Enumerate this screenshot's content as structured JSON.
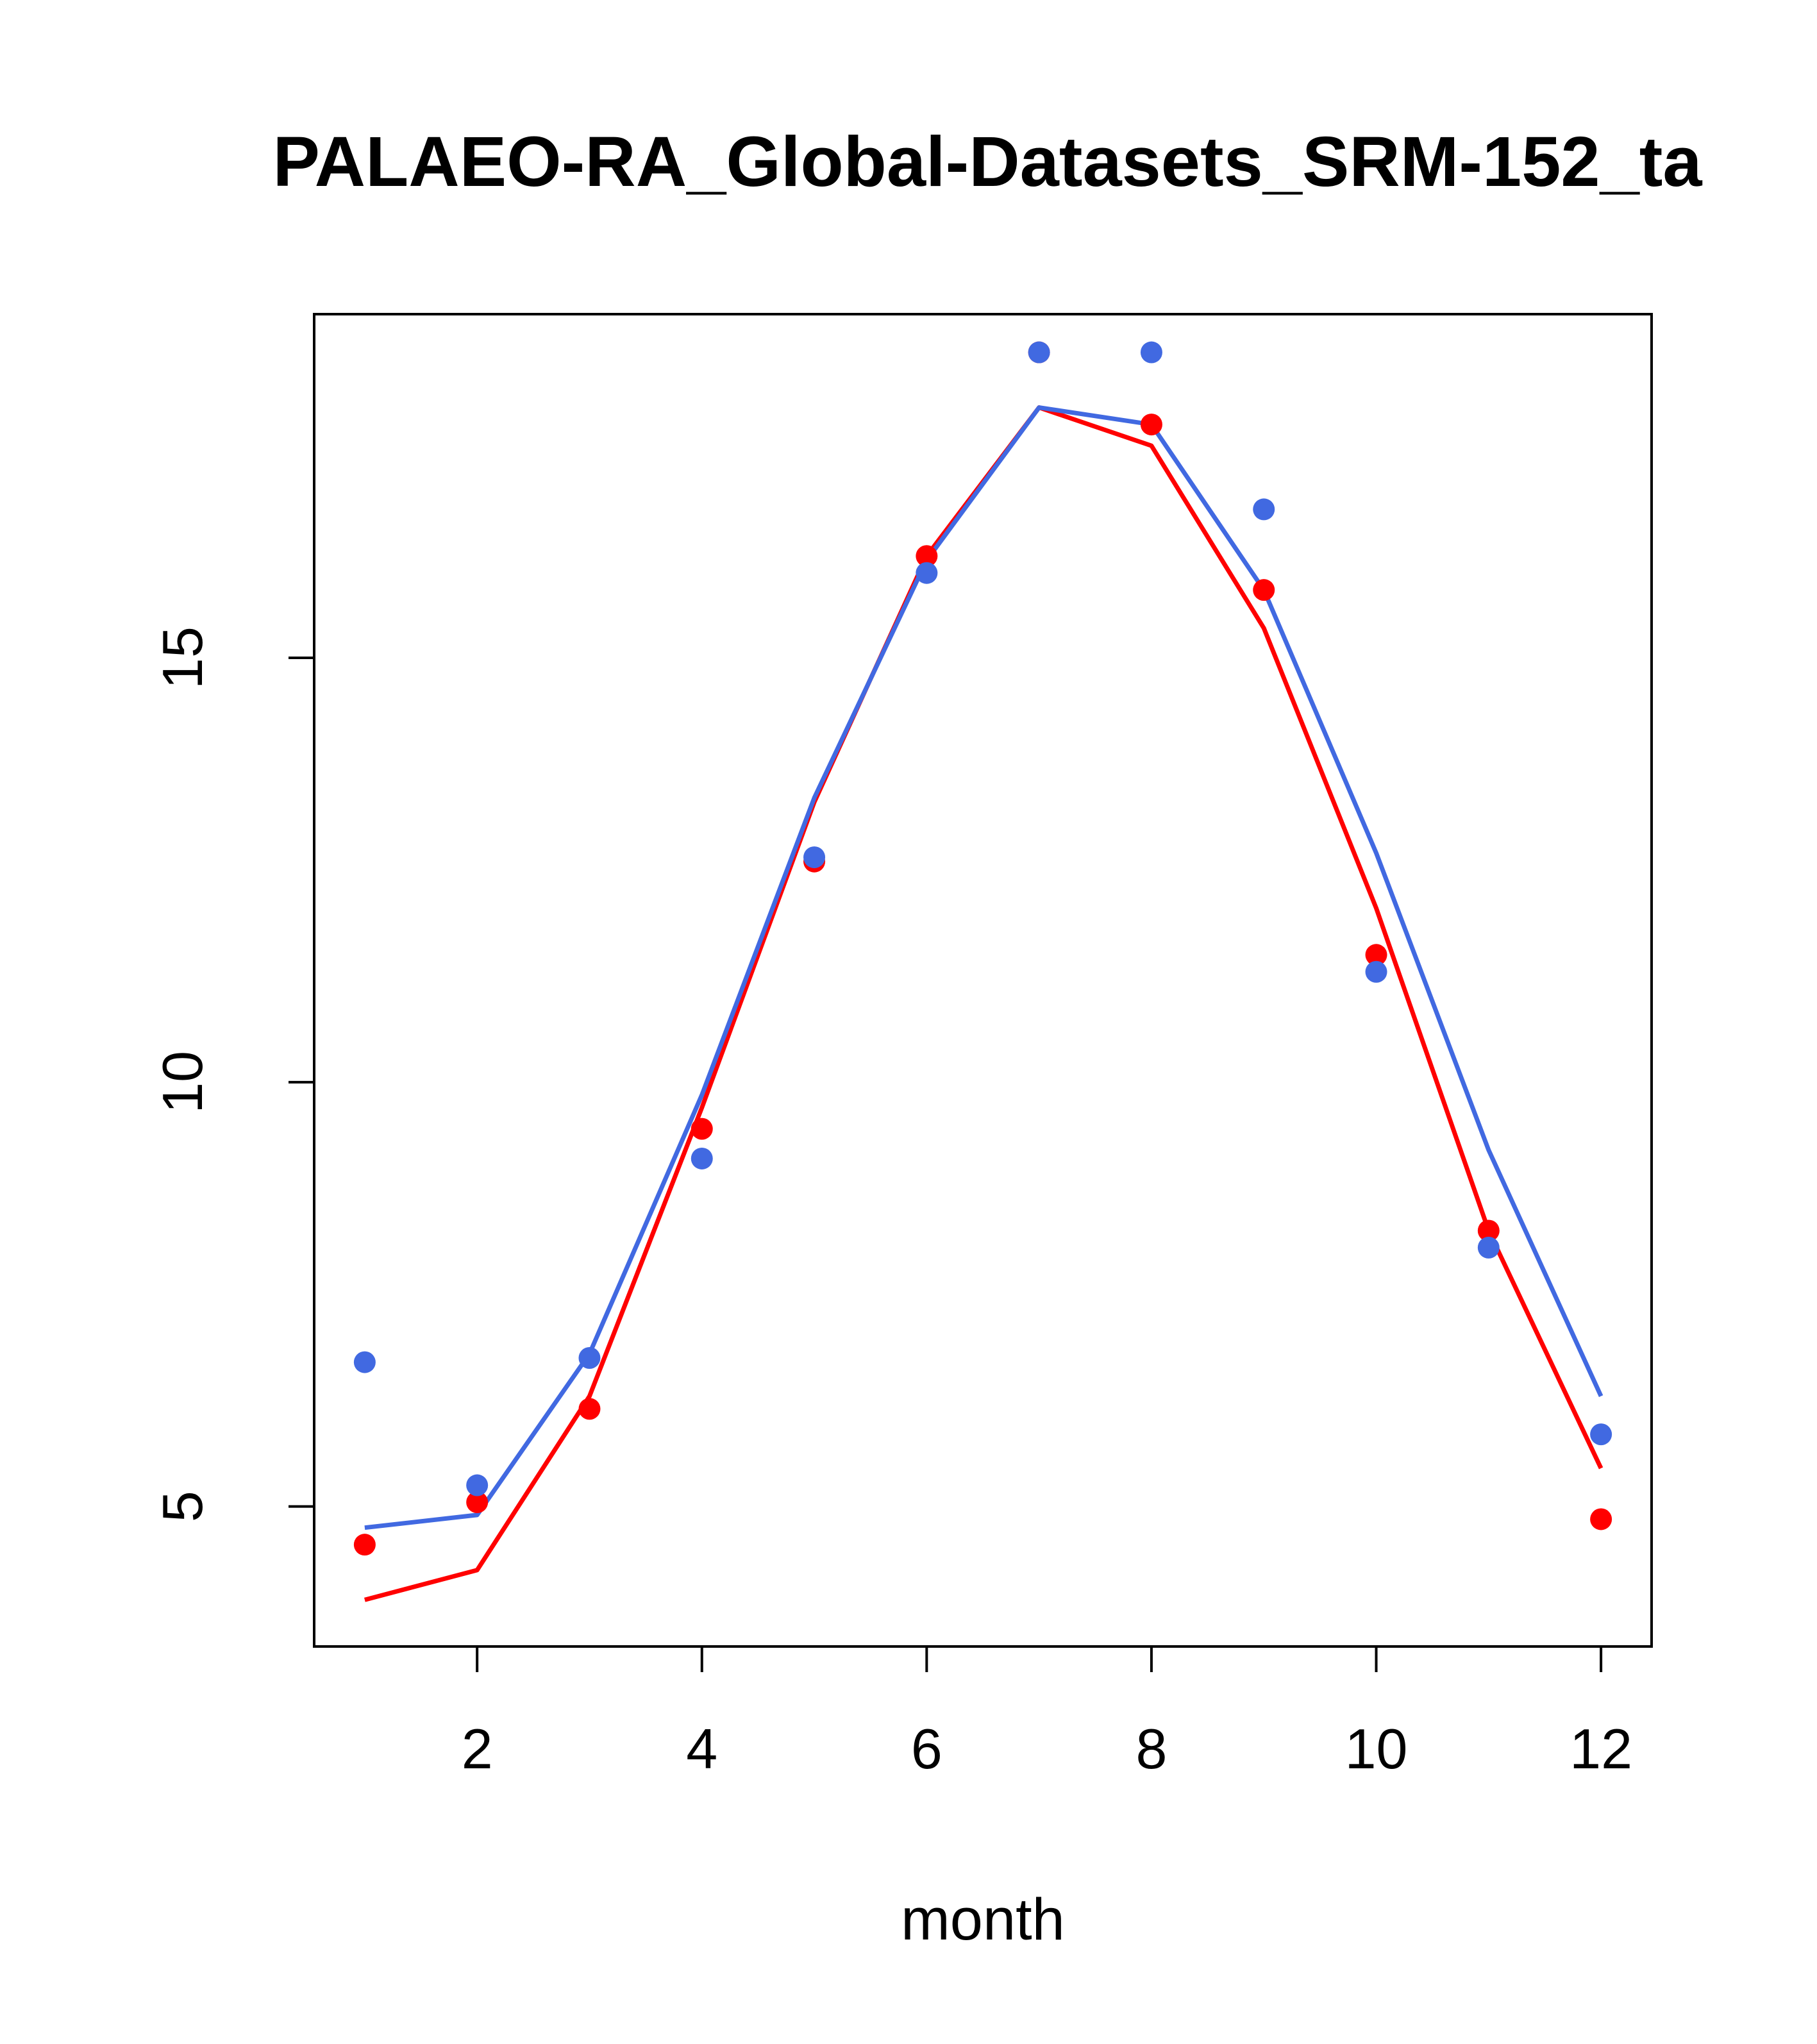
{
  "chart_data": {
    "type": "line",
    "title": "PALAEO-RA_Global-Datasets_SRM-152_ta",
    "xlabel": "month",
    "ylabel": "",
    "xlim": [
      0.55,
      12.45
    ],
    "ylim": [
      3.35,
      19.05
    ],
    "x_ticks": [
      2,
      4,
      6,
      8,
      10,
      12
    ],
    "x_tick_labels": [
      "2",
      "4",
      "6",
      "8",
      "10",
      "12"
    ],
    "y_ticks": [
      5,
      10,
      15
    ],
    "y_tick_labels": [
      "5",
      "10",
      "15"
    ],
    "x": [
      1,
      2,
      3,
      4,
      5,
      6,
      7,
      8,
      9,
      10,
      11,
      12
    ],
    "series": [
      {
        "name": "red-line",
        "kind": "line",
        "color": "#ff0000",
        "values": [
          3.9,
          4.25,
          6.3,
          9.7,
          13.3,
          16.2,
          17.95,
          17.5,
          15.35,
          12.05,
          8.25,
          5.45
        ]
      },
      {
        "name": "blue-line",
        "kind": "line",
        "color": "#4169e1",
        "values": [
          4.75,
          4.9,
          6.8,
          9.85,
          13.35,
          16.15,
          17.95,
          17.75,
          15.8,
          12.7,
          9.2,
          6.3
        ]
      },
      {
        "name": "red-points",
        "kind": "points",
        "color": "#ff0000",
        "values": [
          4.55,
          5.05,
          6.15,
          9.45,
          12.6,
          16.2,
          18.6,
          17.75,
          15.8,
          11.5,
          8.25,
          4.85
        ]
      },
      {
        "name": "blue-points",
        "kind": "points",
        "color": "#4169e1",
        "values": [
          6.7,
          5.25,
          6.75,
          9.1,
          12.65,
          16.0,
          18.6,
          18.6,
          16.75,
          11.3,
          8.05,
          5.85
        ]
      }
    ]
  }
}
